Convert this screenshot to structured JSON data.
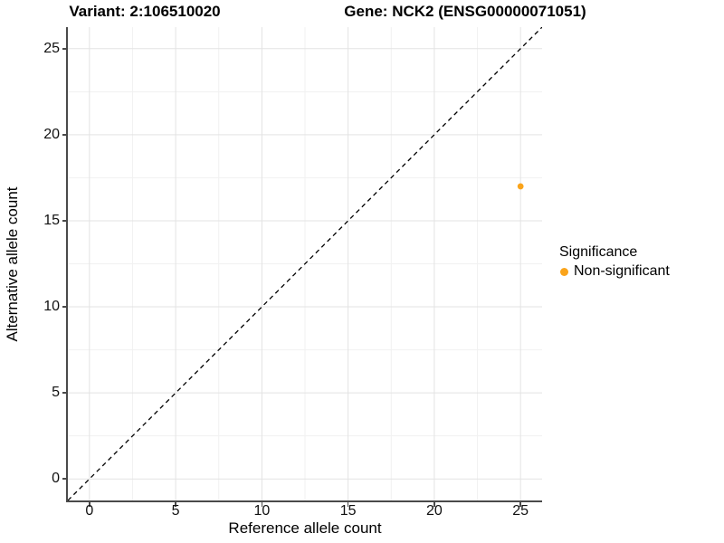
{
  "titles": {
    "variant": "Variant: 2:106510020",
    "gene": "Gene: NCK2 (ENSG00000071051)"
  },
  "legend": {
    "title": "Significance",
    "items": [
      {
        "label": "Non-significant",
        "color": "#FAA41B"
      }
    ]
  },
  "chart_data": {
    "type": "scatter",
    "title": "Variant: 2:106510020 — Gene: NCK2 (ENSG00000071051)",
    "xlabel": "Reference allele count",
    "ylabel": "Alternative allele count",
    "xlim": [
      -1.25,
      26.25
    ],
    "ylim": [
      -1.25,
      26.25
    ],
    "x_ticks": [
      0,
      5,
      10,
      15,
      20,
      25
    ],
    "y_ticks": [
      0,
      5,
      10,
      15,
      20,
      25
    ],
    "minor_grid_step": 2.5,
    "grid": "major+minor",
    "legend_position": "right",
    "series": [
      {
        "name": "Non-significant",
        "color": "#FAA41B",
        "points": [
          {
            "x": 25,
            "y": 17
          }
        ]
      }
    ],
    "reference_line": {
      "kind": "identity y=x",
      "from": [
        -1.25,
        -1.25
      ],
      "to": [
        26.25,
        26.25
      ],
      "style": "dashed",
      "color": "#000000"
    }
  },
  "colors": {
    "point": "#FAA41B",
    "axis_line": "#4a4a4a",
    "tick_mark": "#4a4a4a",
    "grid_major": "#e3e3e3",
    "grid_minor": "#f1f1f1",
    "background": "#ffffff"
  }
}
